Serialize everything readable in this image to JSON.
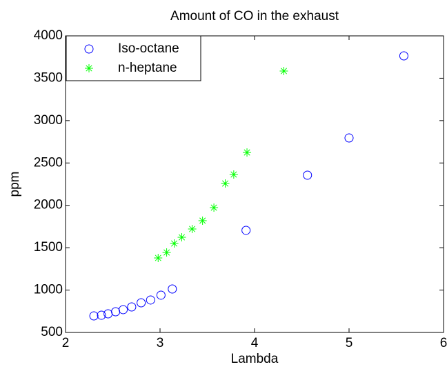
{
  "chart_data": {
    "type": "scatter",
    "title": "Amount of CO in the exhaust",
    "x_label": "Lambda",
    "y_label": "ppm",
    "xlim": [
      2,
      6
    ],
    "xticks": [
      2,
      3,
      4,
      5,
      6
    ],
    "ylim": [
      500,
      4000
    ],
    "yticks": [
      500,
      1000,
      1500,
      2000,
      2500,
      3000,
      3500,
      4000
    ],
    "legend": "upper left",
    "series": [
      {
        "name": "Iso-octane",
        "color": "#0000ff",
        "marker": "circle",
        "x": [
          2.3,
          2.38,
          2.45,
          2.53,
          2.61,
          2.7,
          2.8,
          2.9,
          3.01,
          3.13,
          3.91,
          4.56,
          5.0,
          5.58
        ],
        "values": [
          695,
          703,
          720,
          744,
          769,
          801,
          850,
          883,
          940,
          1013,
          1705,
          2356,
          2795,
          3764
        ]
      },
      {
        "name": "n-heptane",
        "color": "#00ff00",
        "marker": "star",
        "x": [
          2.98,
          3.07,
          3.15,
          3.23,
          3.34,
          3.45,
          3.57,
          3.69,
          3.78,
          3.92,
          4.31
        ],
        "values": [
          1379,
          1444,
          1550,
          1623,
          1721,
          1819,
          1973,
          2258,
          2364,
          2624,
          3585
        ]
      }
    ]
  }
}
